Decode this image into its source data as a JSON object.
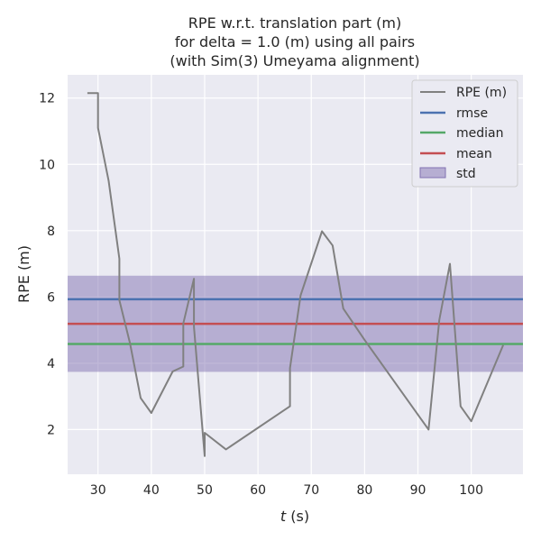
{
  "chart_data": {
    "type": "line",
    "title": [
      "RPE w.r.t. translation part (m)",
      "for delta = 1.0 (m) using all pairs",
      "(with Sim(3) Umeyama alignment)"
    ],
    "xlabel_var": "t",
    "xlabel_unit": " (s)",
    "ylabel": "RPE (m)",
    "xlim": [
      24.3,
      109.7
    ],
    "ylim": [
      0.65,
      12.7
    ],
    "xticks": [
      30,
      40,
      50,
      60,
      70,
      80,
      90,
      100
    ],
    "yticks": [
      2,
      4,
      6,
      8,
      10,
      12
    ],
    "grid": true,
    "legend_position": "top-right",
    "series": [
      {
        "name": "RPE (m)",
        "color": "#808080",
        "x": [
          28,
          30,
          30,
          32,
          34,
          34,
          36,
          38,
          40,
          44,
          46,
          46,
          48,
          48,
          50,
          50,
          54,
          66,
          66,
          68,
          72,
          74,
          76,
          80,
          92,
          94,
          96,
          98,
          100,
          106
        ],
        "y": [
          12.15,
          12.15,
          11.1,
          9.5,
          7.15,
          5.9,
          4.6,
          2.95,
          2.5,
          3.75,
          3.9,
          5.2,
          6.55,
          5.1,
          1.2,
          1.9,
          1.4,
          2.7,
          3.85,
          6.05,
          7.98,
          7.55,
          5.65,
          4.7,
          2.0,
          5.3,
          7.0,
          2.7,
          2.25,
          4.55
        ]
      }
    ],
    "statistics": {
      "rmse": {
        "label": "rmse",
        "value": 5.93,
        "color": "#4c72b0"
      },
      "median": {
        "label": "median",
        "value": 4.58,
        "color": "#55a868"
      },
      "mean": {
        "label": "mean",
        "value": 5.19,
        "color": "#c44e52"
      },
      "std": {
        "label": "std",
        "value": 1.45,
        "color": "#8172b2"
      }
    }
  }
}
